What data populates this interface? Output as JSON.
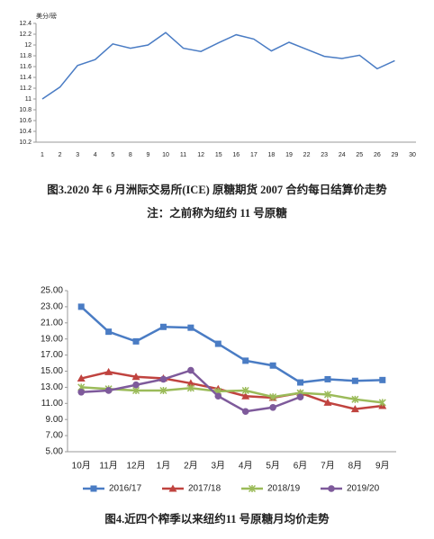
{
  "chart_data": [
    {
      "type": "line",
      "title": "图3.2020 年 6 月洲际交易所(ICE) 原糖期货 2007 合约每日结算价走势",
      "note": "注：之前称为纽约 11 号原糖",
      "ylabel": "美分/磅",
      "categories": [
        "1",
        "2",
        "3",
        "4",
        "5",
        "8",
        "9",
        "10",
        "11",
        "12",
        "15",
        "16",
        "17",
        "18",
        "19",
        "22",
        "23",
        "24",
        "25",
        "26",
        "29",
        "30"
      ],
      "series": [
        {
          "color": "#4a7cc4",
          "marker": "none",
          "values": [
            11.0,
            11.22,
            11.62,
            11.73,
            12.02,
            11.94,
            12.0,
            12.23,
            11.94,
            11.88,
            12.04,
            12.19,
            12.11,
            11.89,
            12.05,
            11.92,
            11.79,
            11.75,
            11.81,
            11.56,
            11.71,
            null
          ]
        }
      ],
      "ylim": [
        10.2,
        12.4
      ],
      "yticks": [
        10.2,
        10.4,
        10.6,
        10.8,
        11,
        11.2,
        11.4,
        11.6,
        11.8,
        12,
        12.2,
        12.4
      ],
      "grid": false
    },
    {
      "type": "line",
      "title": "图4.近四个榨季以来纽约11 号原糖月均价走势",
      "categories": [
        "10月",
        "11月",
        "12月",
        "1月",
        "2月",
        "3月",
        "4月",
        "5月",
        "6月",
        "7月",
        "8月",
        "9月"
      ],
      "series": [
        {
          "name": "2016/17",
          "color": "#4a7cc4",
          "marker": "square",
          "values": [
            23.0,
            19.9,
            18.7,
            20.5,
            20.4,
            18.4,
            16.3,
            15.7,
            13.6,
            14.0,
            13.8,
            13.9
          ]
        },
        {
          "name": "2017/18",
          "color": "#c0433f",
          "marker": "triangle",
          "values": [
            14.1,
            14.9,
            14.3,
            14.1,
            13.5,
            12.8,
            11.9,
            11.7,
            12.3,
            11.1,
            10.3,
            10.7
          ]
        },
        {
          "name": "2018/19",
          "color": "#9bbb59",
          "marker": "x",
          "values": [
            13.0,
            12.8,
            12.6,
            12.6,
            12.9,
            12.5,
            12.6,
            11.8,
            12.3,
            12.1,
            11.5,
            11.1
          ]
        },
        {
          "name": "2019/20",
          "color": "#7e5a9b",
          "marker": "circle",
          "values": [
            12.4,
            12.6,
            13.3,
            14.0,
            15.1,
            11.9,
            10.0,
            10.5,
            11.8,
            null,
            null,
            null
          ]
        }
      ],
      "ylim": [
        5,
        25
      ],
      "yticks": [
        {
          "value": 5,
          "label": "5.00"
        },
        {
          "value": 7,
          "label": "7.00"
        },
        {
          "value": 9,
          "label": "9.00"
        },
        {
          "value": 11,
          "label": "11.00"
        },
        {
          "value": 13,
          "label": "13.00"
        },
        {
          "value": 15,
          "label": "15.00"
        },
        {
          "value": 17,
          "label": "17.00"
        },
        {
          "value": 19,
          "label": "19.00"
        },
        {
          "value": 21,
          "label": "21.00"
        },
        {
          "value": 23,
          "label": "23.00"
        },
        {
          "value": 25,
          "label": "25.00"
        }
      ],
      "grid": false,
      "legend": "bottom"
    }
  ]
}
